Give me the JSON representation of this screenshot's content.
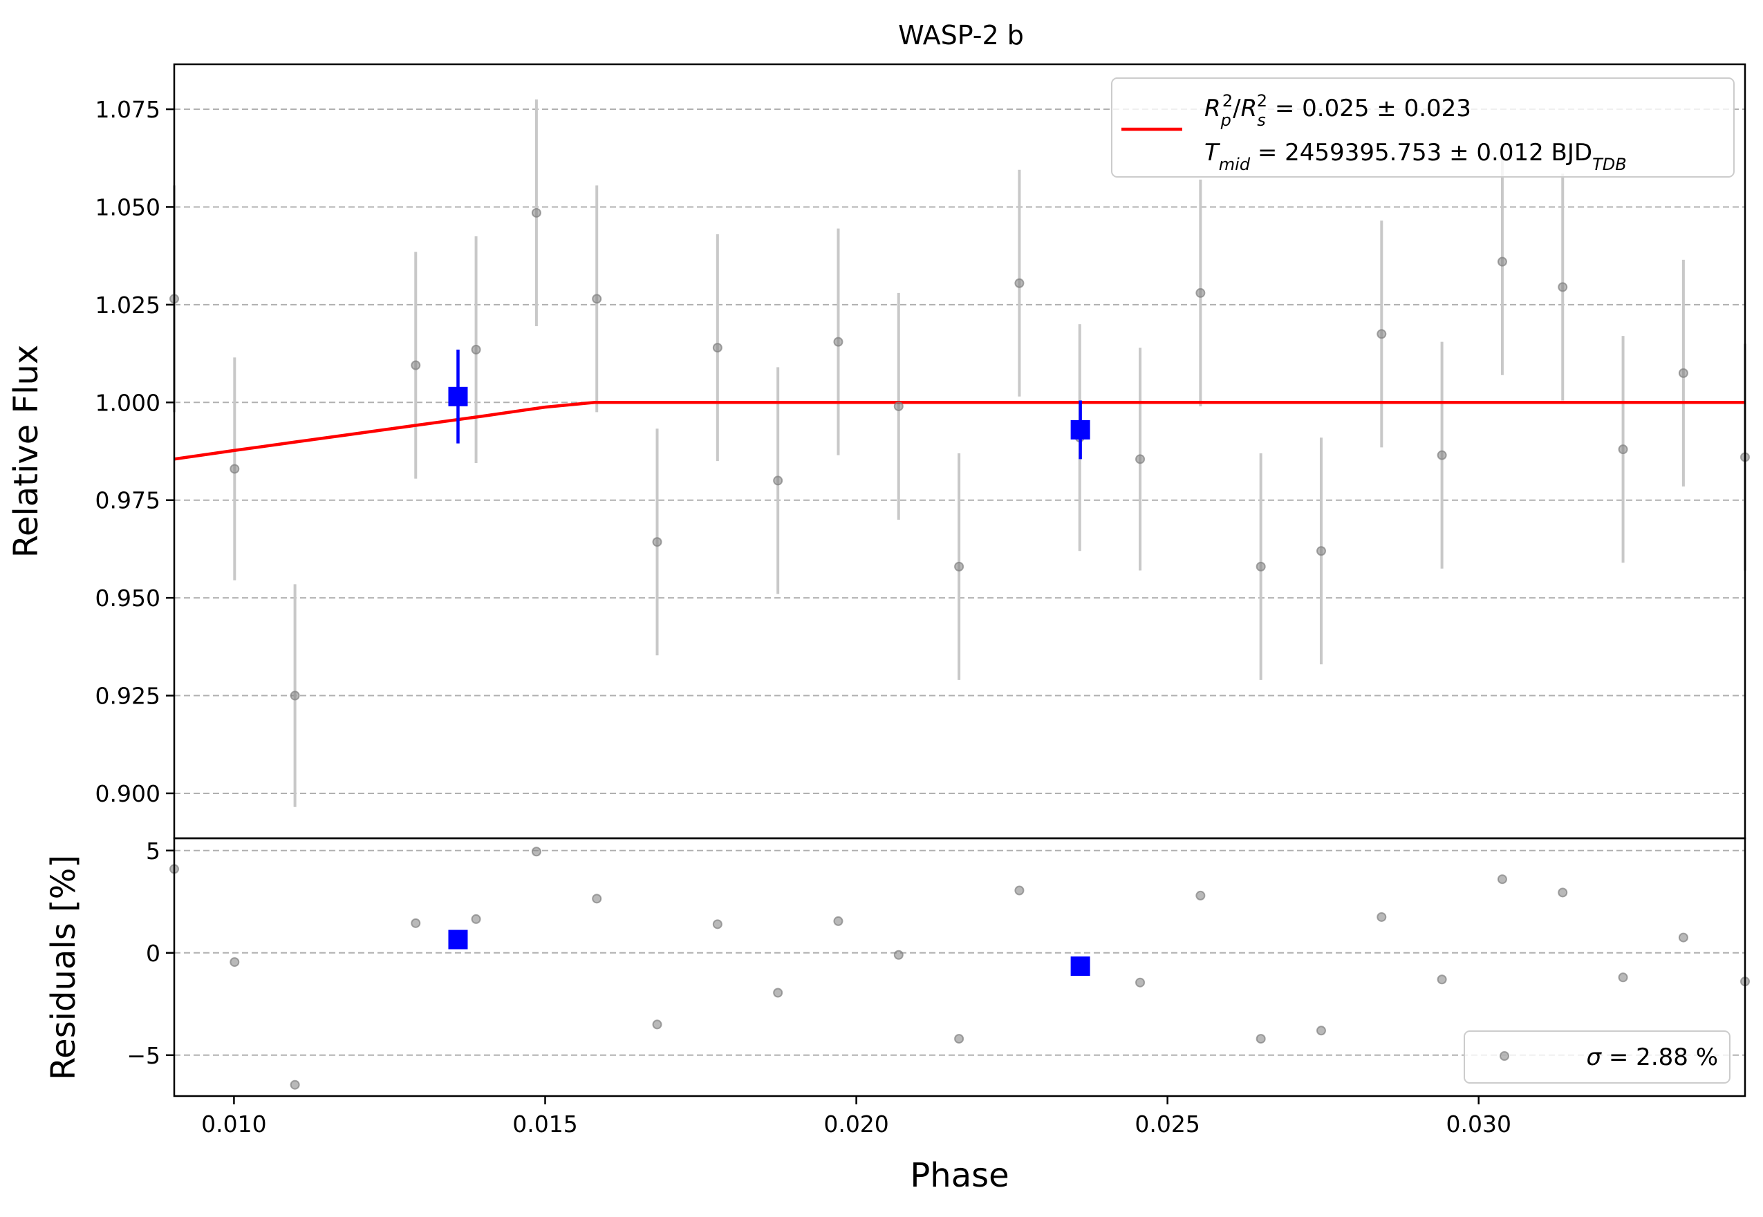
{
  "chart_data": [
    {
      "type": "scatter",
      "title": "WASP-2 b",
      "xlabel": "",
      "ylabel": "Relative Flux",
      "xlim": [
        0.00904,
        0.03428
      ],
      "ylim": [
        0.8885,
        1.0865
      ],
      "yticks": [
        {
          "v": 0.9,
          "label": "0.900"
        },
        {
          "v": 0.925,
          "label": "0.925"
        },
        {
          "v": 0.95,
          "label": "0.950"
        },
        {
          "v": 0.975,
          "label": "0.975"
        },
        {
          "v": 1.0,
          "label": "1.000"
        },
        {
          "v": 1.025,
          "label": "1.025"
        },
        {
          "v": 1.05,
          "label": "1.050"
        },
        {
          "v": 1.075,
          "label": "1.075"
        }
      ],
      "grid": "horizontal dashed",
      "legend_position": "top-right",
      "legend": {
        "label_line1": "R_p^2/R_s^2 = 0.025 ± 0.023",
        "label_line2": "T_mid = 2459395.753 ± 0.012 BJD_TDB",
        "l1_sym": "R",
        "l1_sub1": "p",
        "l1_sup1": "2",
        "l1_mid": "/",
        "l1_sub2": "s",
        "l1_sup2": "2",
        "l1_tail": " = 0.025 ± 0.023",
        "l2_sym": "T",
        "l2_sub": "mid",
        "l2_mid": " = 2459395.753 ± 0.012 BJD",
        "l2_sub2": "TDB"
      },
      "colors": {
        "model": "#ff0000",
        "binned": "#0000ff",
        "data": "#808080",
        "grid": "#b0b0b0"
      },
      "series": [
        {
          "kind": "points_with_errorbars",
          "x": [
            0.00904,
            0.01001,
            0.01098,
            0.01292,
            0.01389,
            0.01486,
            0.01583,
            0.0168,
            0.01777,
            0.01874,
            0.01971,
            0.02068,
            0.02165,
            0.02262,
            0.02359,
            0.02456,
            0.02553,
            0.0265,
            0.02747,
            0.02844,
            0.02941,
            0.03038,
            0.03135,
            0.03232,
            0.03329,
            0.03428
          ],
          "y": [
            1.0265,
            0.983,
            0.925,
            1.0095,
            1.0135,
            1.0485,
            1.0265,
            0.9643,
            1.014,
            0.98,
            1.0155,
            0.999,
            0.958,
            1.0305,
            0.991,
            0.9855,
            1.028,
            0.958,
            0.962,
            1.0175,
            0.9865,
            1.036,
            1.0295,
            0.988,
            1.0075,
            0.986
          ],
          "err": [
            0.029,
            0.0285,
            0.0285,
            0.029,
            0.029,
            0.029,
            0.029,
            0.029,
            0.029,
            0.029,
            0.029,
            0.029,
            0.029,
            0.029,
            0.029,
            0.0285,
            0.029,
            0.029,
            0.029,
            0.029,
            0.029,
            0.029,
            0.029,
            0.029,
            0.029,
            0.029
          ]
        },
        {
          "kind": "binned",
          "x": [
            0.0136,
            0.0236
          ],
          "y": [
            1.0015,
            0.993
          ],
          "err": [
            0.012,
            0.0075
          ]
        },
        {
          "kind": "model",
          "x": [
            0.00904,
            0.01,
            0.011,
            0.012,
            0.013,
            0.014,
            0.015,
            0.0158,
            0.02,
            0.025,
            0.03,
            0.03428
          ],
          "y": [
            0.9855,
            0.9877,
            0.9899,
            0.9921,
            0.9943,
            0.9965,
            0.9988,
            1.0,
            1.0,
            1.0,
            1.0,
            1.0
          ]
        }
      ]
    },
    {
      "type": "scatter",
      "title": "",
      "xlabel": "Phase",
      "ylabel": "Residuals [%]",
      "xlim": [
        0.00904,
        0.03428
      ],
      "ylim": [
        -7.0,
        5.6
      ],
      "xticks": [
        {
          "v": 0.01,
          "label": "0.010"
        },
        {
          "v": 0.015,
          "label": "0.015"
        },
        {
          "v": 0.02,
          "label": "0.020"
        },
        {
          "v": 0.025,
          "label": "0.025"
        },
        {
          "v": 0.03,
          "label": "0.030"
        }
      ],
      "yticks": [
        {
          "v": -5,
          "label": "−5"
        },
        {
          "v": 0,
          "label": "0"
        },
        {
          "v": 5,
          "label": "5"
        }
      ],
      "grid": "horizontal dashed",
      "legend_position": "bottom-right",
      "legend": {
        "sigma_symbol": "σ",
        "sigma_text": " = 2.88 %"
      },
      "series": [
        {
          "kind": "points",
          "x": [
            0.00904,
            0.01001,
            0.01098,
            0.01292,
            0.01389,
            0.01486,
            0.01583,
            0.0168,
            0.01777,
            0.01874,
            0.01971,
            0.02068,
            0.02165,
            0.02262,
            0.02359,
            0.02456,
            0.02553,
            0.0265,
            0.02747,
            0.02844,
            0.02941,
            0.03038,
            0.03135,
            0.03232,
            0.03329,
            0.03428
          ],
          "y": [
            4.1,
            -0.45,
            -6.45,
            1.45,
            1.65,
            4.95,
            2.65,
            -3.5,
            1.4,
            -1.95,
            1.55,
            -0.1,
            -4.2,
            3.05,
            -0.6,
            -1.45,
            2.8,
            -4.2,
            -3.8,
            1.75,
            -1.3,
            3.6,
            2.95,
            -1.2,
            0.75,
            -1.4
          ]
        },
        {
          "kind": "binned",
          "x": [
            0.0136,
            0.0236
          ],
          "y": [
            0.65,
            -0.65
          ]
        }
      ]
    }
  ]
}
